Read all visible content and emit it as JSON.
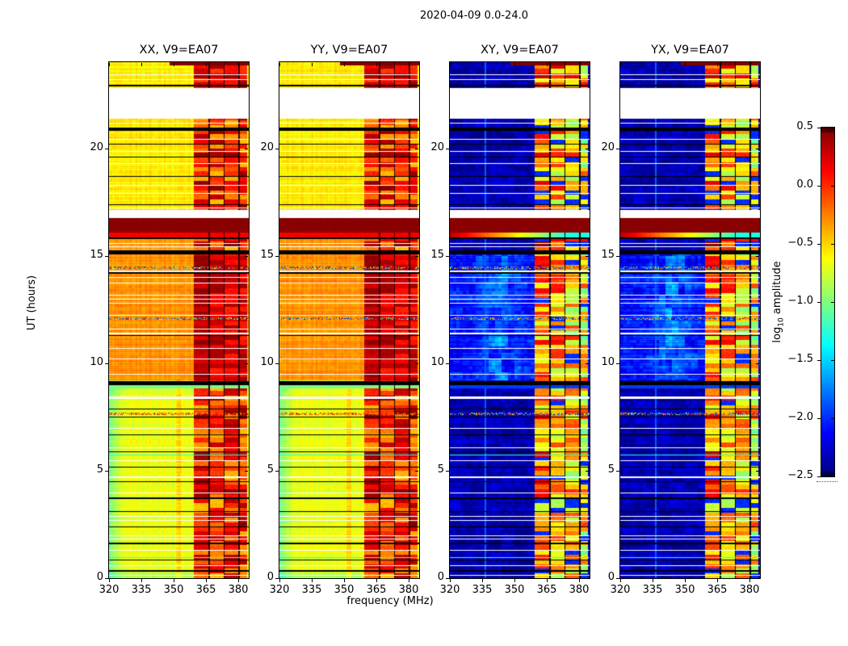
{
  "figure": {
    "title": "2020-04-09 0.0-24.0",
    "xlabel": "frequency (MHz)",
    "ylabel": "UT (hours)",
    "colorbar_label_pre": "log",
    "colorbar_label_sub": "10",
    "colorbar_label_post": " amplitude"
  },
  "panels": [
    {
      "key": "xx",
      "title": "XX, V9=EA07",
      "type": "warm"
    },
    {
      "key": "yy",
      "title": "YY, V9=EA07",
      "type": "warm"
    },
    {
      "key": "xy",
      "title": "XY, V9=EA07",
      "type": "cool"
    },
    {
      "key": "yx",
      "title": "YX, V9=EA07",
      "type": "cool"
    }
  ],
  "axes": {
    "x_ticks": [
      "320",
      "335",
      "350",
      "365",
      "380"
    ],
    "x_tick_values": [
      320,
      335,
      350,
      365,
      380
    ],
    "y_ticks": [
      "0",
      "5",
      "10",
      "15",
      "20"
    ],
    "y_tick_values": [
      0,
      5,
      10,
      15,
      20
    ],
    "x_range": [
      320,
      385
    ],
    "y_range": [
      0,
      24
    ]
  },
  "colorbar": {
    "tick_labels": [
      "0.5",
      "0.0",
      "−0.5",
      "−1.0",
      "−1.5",
      "−2.0",
      "−2.5"
    ],
    "tick_values": [
      0.5,
      0.0,
      -0.5,
      -1.0,
      -1.5,
      -2.0,
      -2.5
    ],
    "vmin": -2.5,
    "vmax": 0.5,
    "colormap": "jet"
  },
  "chart_data": {
    "type": "heatmap",
    "title": "2020-04-09 0.0-24.0",
    "subplots": [
      "XX, V9=EA07",
      "YY, V9=EA07",
      "XY, V9=EA07",
      "YX, V9=EA07"
    ],
    "xlabel": "frequency (MHz)",
    "ylabel": "UT (hours)",
    "x_range_mhz": [
      320,
      385
    ],
    "y_range_hours": [
      0,
      24
    ],
    "color_scale": {
      "label": "log10 amplitude",
      "vmin": -2.5,
      "vmax": 0.5,
      "cmap": "jet"
    },
    "summary": "Waterfall spectra for four polarization products of antenna V9=EA07. XX and YY are bright (log10 amp ~ -0.7 yellow, ~ -0.3 orange between 09h-15h UT). XY and YX are faint (~ -2.3 dark blue). Strong RFI occupies ~359-384 MHz in blocky bursts; a saturated dark-red band crosses all panels near 16.1-16.75h; data gaps (white) near 16.8-17.1h and 21.4-22.8h; many thin flagged (black) and missing (white) time rows.",
    "structure": {
      "white_gaps": [
        [
          21.4,
          22.8
        ],
        [
          16.78,
          17.12
        ]
      ],
      "maroon_band": [
        16.08,
        16.75
      ],
      "red_row": [
        15.85,
        16.08
      ],
      "green_row": [
        8.82,
        8.98
      ],
      "orange_region": [
        9.2,
        15.08
      ],
      "top_block_start": 22.8,
      "rfi_bands_mhz": [
        [
          359.5,
          366.1
        ],
        [
          366.8,
          373.2
        ],
        [
          373.9,
          380.2
        ],
        [
          380.9,
          384.2
        ]
      ],
      "flag_cols_mhz": [
        [
          366.1,
          366.8
        ],
        [
          373.2,
          373.9
        ],
        [
          380.2,
          380.9
        ]
      ],
      "bright_col_mhz": 336.5,
      "hot_col_mhz": 352.3,
      "speckle_rows": [
        {
          "t": 14.45,
          "bias": "full"
        },
        {
          "t": 12.07,
          "bias": "full"
        },
        {
          "t": 7.65,
          "bias": "warm"
        }
      ],
      "green_lines": [
        [
          0.98,
          1
        ],
        [
          5.75,
          1
        ]
      ],
      "black_lines": [
        [
          22.9,
          2
        ],
        [
          20.88,
          4
        ],
        [
          20.2,
          1
        ],
        [
          19.6,
          1
        ],
        [
          18.7,
          1
        ],
        [
          17.4,
          1
        ],
        [
          15.82,
          2
        ],
        [
          15.18,
          5
        ],
        [
          14.18,
          2
        ],
        [
          11.3,
          1
        ],
        [
          9.1,
          5
        ],
        [
          7.9,
          1
        ],
        [
          7.5,
          1
        ],
        [
          6.7,
          1
        ],
        [
          5.9,
          1
        ],
        [
          5.2,
          1
        ],
        [
          4.5,
          1
        ],
        [
          3.7,
          2
        ],
        [
          3.1,
          1
        ],
        [
          2.4,
          1
        ],
        [
          1.6,
          2
        ],
        [
          0.85,
          1
        ],
        [
          0.32,
          2
        ]
      ],
      "white_lines": [
        [
          23.45,
          1
        ],
        [
          23.2,
          1
        ],
        [
          21.2,
          1
        ],
        [
          20.45,
          1
        ],
        [
          19.85,
          1
        ],
        [
          19.3,
          1
        ],
        [
          18.3,
          1
        ],
        [
          17.9,
          1
        ],
        [
          17.25,
          1
        ],
        [
          15.6,
          1
        ],
        [
          15.42,
          1
        ],
        [
          14.3,
          2
        ],
        [
          14.0,
          1
        ],
        [
          13.75,
          1
        ],
        [
          13.2,
          1
        ],
        [
          13.0,
          1
        ],
        [
          12.8,
          1
        ],
        [
          12.25,
          1
        ],
        [
          11.6,
          1
        ],
        [
          11.42,
          2
        ],
        [
          10.7,
          1
        ],
        [
          10.2,
          1
        ],
        [
          9.5,
          1
        ],
        [
          8.45,
          3
        ],
        [
          7.0,
          1
        ],
        [
          6.1,
          1
        ],
        [
          5.5,
          1
        ],
        [
          4.75,
          2
        ],
        [
          4.0,
          1
        ],
        [
          2.9,
          1
        ],
        [
          2.7,
          1
        ],
        [
          2.0,
          1
        ],
        [
          1.85,
          1
        ],
        [
          1.3,
          1
        ],
        [
          0.6,
          1
        ],
        [
          0.14,
          1
        ]
      ]
    }
  }
}
